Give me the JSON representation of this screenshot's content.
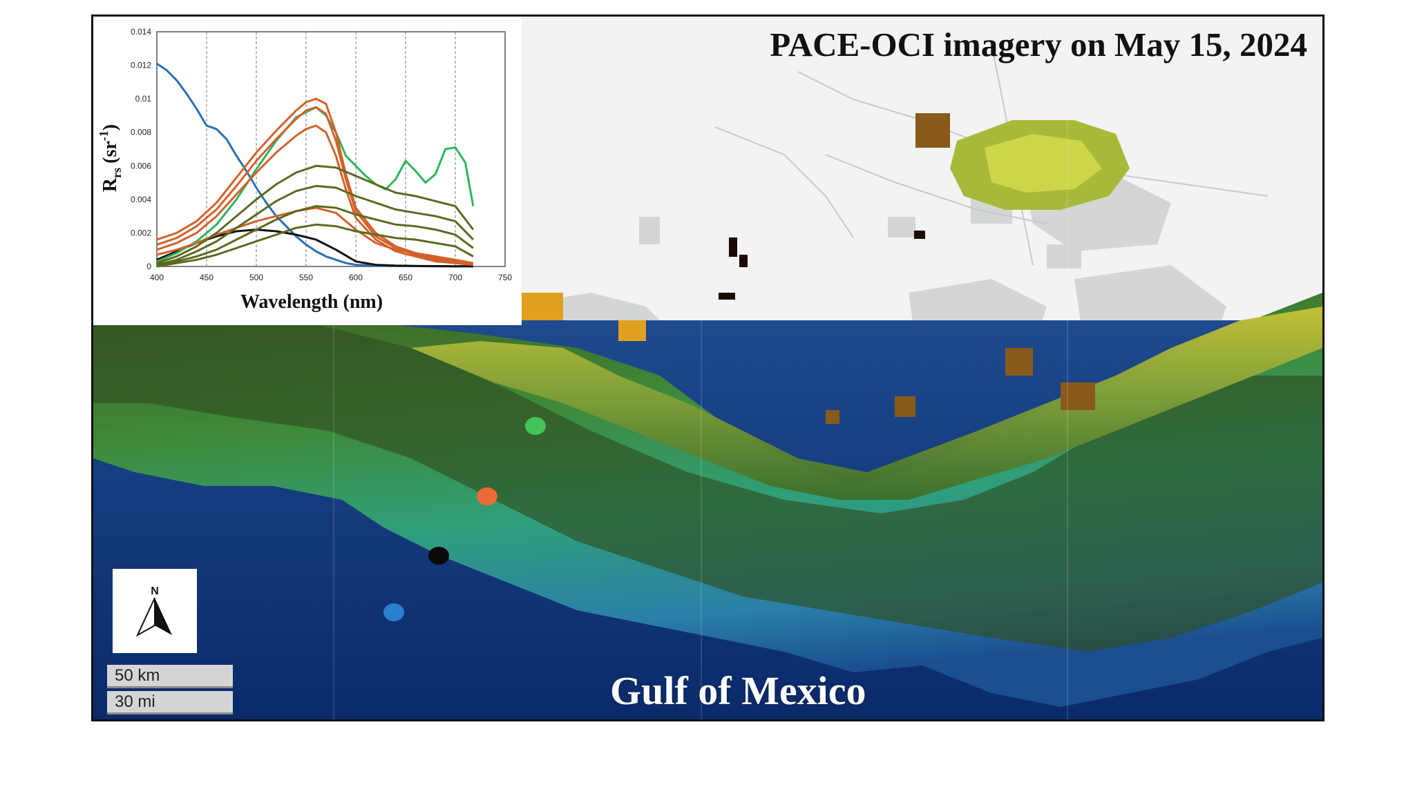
{
  "map": {
    "title": "PACE-OCI imagery on May 15, 2024",
    "water_label": "Gulf of Mexico",
    "north_label": "N",
    "scale_km": "50 km",
    "scale_mi": "30 mi",
    "sample_points": [
      {
        "name": "green",
        "color": "#43c35a"
      },
      {
        "name": "orange",
        "color": "#ec6a35"
      },
      {
        "name": "black",
        "color": "#0a0a0a"
      },
      {
        "name": "blue",
        "color": "#2a7fd1"
      }
    ]
  },
  "chart_data": {
    "type": "line",
    "xlabel": "Wavelength (nm)",
    "ylabel_main": "R",
    "ylabel_sub": "rs",
    "ylabel_unit_open": "(sr",
    "ylabel_unit_exp": "-1",
    "ylabel_unit_close": ")",
    "xlim": [
      400,
      750
    ],
    "ylim": [
      0,
      0.014
    ],
    "xticks": [
      "400",
      "450",
      "500",
      "550",
      "600",
      "650",
      "700",
      "750"
    ],
    "yticks": [
      "0",
      "0.002",
      "0.004",
      "0.006",
      "0.008",
      "0.01",
      "0.012",
      "0.014"
    ],
    "grid": "vertical dashed",
    "series": [
      {
        "color": "#2a6fb5",
        "x": [
          400,
          410,
          420,
          430,
          440,
          450,
          460,
          470,
          480,
          490,
          500,
          510,
          520,
          530,
          540,
          550,
          560,
          570,
          580,
          590,
          600,
          620,
          640,
          660,
          680,
          700,
          718
        ],
        "y": [
          0.0121,
          0.0117,
          0.0111,
          0.0103,
          0.0094,
          0.0084,
          0.0082,
          0.0076,
          0.0066,
          0.0057,
          0.0047,
          0.0038,
          0.003,
          0.0024,
          0.0018,
          0.0013,
          0.0009,
          0.0006,
          0.0004,
          0.0002,
          0.0001,
          5e-05,
          3e-05,
          2e-05,
          1e-05,
          1e-05,
          1e-05
        ]
      },
      {
        "color": "#111111",
        "x": [
          400,
          420,
          440,
          460,
          480,
          500,
          520,
          540,
          560,
          580,
          600,
          620,
          640,
          660,
          680,
          700,
          718
        ],
        "y": [
          0.0004,
          0.0009,
          0.0014,
          0.0018,
          0.0021,
          0.0022,
          0.0021,
          0.0019,
          0.0016,
          0.001,
          0.0003,
          0.0001,
          5e-05,
          3e-05,
          2e-05,
          1e-05,
          1e-05
        ]
      },
      {
        "color": "#2fb45a",
        "x": [
          400,
          420,
          440,
          460,
          480,
          500,
          520,
          540,
          560,
          570,
          580,
          590,
          600,
          610,
          620,
          630,
          640,
          650,
          660,
          670,
          680,
          690,
          700,
          710,
          718
        ],
        "y": [
          0.0003,
          0.0008,
          0.0015,
          0.0025,
          0.004,
          0.0058,
          0.0075,
          0.0089,
          0.0095,
          0.009,
          0.008,
          0.0066,
          0.006,
          0.0054,
          0.0049,
          0.0046,
          0.0052,
          0.0063,
          0.0057,
          0.005,
          0.0055,
          0.007,
          0.0071,
          0.0062,
          0.0036
        ]
      },
      {
        "color": "#d2612a",
        "x": [
          400,
          420,
          440,
          460,
          480,
          500,
          520,
          540,
          550,
          560,
          570,
          580,
          590,
          600,
          620,
          640,
          660,
          680,
          700,
          718
        ],
        "y": [
          0.0016,
          0.002,
          0.0027,
          0.0038,
          0.0053,
          0.0068,
          0.0081,
          0.0093,
          0.0098,
          0.01,
          0.0097,
          0.008,
          0.0055,
          0.0035,
          0.002,
          0.0012,
          0.0008,
          0.0005,
          0.0003,
          0.0001
        ]
      },
      {
        "color": "#d2612a",
        "x": [
          400,
          420,
          440,
          460,
          480,
          500,
          520,
          540,
          550,
          560,
          570,
          580,
          590,
          600,
          620,
          640,
          660,
          680,
          700,
          718
        ],
        "y": [
          0.0013,
          0.0017,
          0.0024,
          0.0034,
          0.0048,
          0.0063,
          0.0076,
          0.0088,
          0.0093,
          0.0095,
          0.0091,
          0.0075,
          0.0052,
          0.0033,
          0.0018,
          0.0011,
          0.0007,
          0.0004,
          0.0002,
          0.0001
        ]
      },
      {
        "color": "#d2612a",
        "x": [
          400,
          420,
          440,
          460,
          480,
          500,
          520,
          540,
          550,
          560,
          570,
          580,
          590,
          600,
          620,
          640,
          660,
          680,
          700,
          718
        ],
        "y": [
          0.001,
          0.0014,
          0.002,
          0.003,
          0.0043,
          0.0056,
          0.0068,
          0.0078,
          0.0082,
          0.0084,
          0.008,
          0.0066,
          0.0046,
          0.0029,
          0.0016,
          0.0009,
          0.0006,
          0.0003,
          0.0002,
          0.0001
        ]
      },
      {
        "color": "#d2612a",
        "x": [
          400,
          420,
          440,
          460,
          480,
          500,
          520,
          540,
          560,
          580,
          600,
          620,
          640,
          660,
          680,
          700,
          718
        ],
        "y": [
          0.0007,
          0.001,
          0.0014,
          0.0019,
          0.0023,
          0.0027,
          0.003,
          0.0033,
          0.0035,
          0.0032,
          0.0022,
          0.0014,
          0.001,
          0.0008,
          0.0006,
          0.0004,
          0.0002
        ]
      },
      {
        "color": "#5b6a1f",
        "x": [
          400,
          420,
          440,
          460,
          480,
          500,
          520,
          540,
          560,
          580,
          600,
          620,
          640,
          660,
          680,
          700,
          718
        ],
        "y": [
          0.0002,
          0.0006,
          0.0012,
          0.002,
          0.003,
          0.004,
          0.0049,
          0.0056,
          0.006,
          0.0059,
          0.0054,
          0.0049,
          0.0044,
          0.0042,
          0.0039,
          0.0036,
          0.0022
        ]
      },
      {
        "color": "#5b6a1f",
        "x": [
          400,
          420,
          440,
          460,
          480,
          500,
          520,
          540,
          560,
          580,
          600,
          620,
          640,
          660,
          680,
          700,
          718
        ],
        "y": [
          0.0001,
          0.0004,
          0.0009,
          0.0015,
          0.0023,
          0.0031,
          0.0039,
          0.0045,
          0.0048,
          0.0047,
          0.0042,
          0.0038,
          0.0034,
          0.0032,
          0.003,
          0.0027,
          0.0016
        ]
      },
      {
        "color": "#5b6a1f",
        "x": [
          400,
          420,
          440,
          460,
          480,
          500,
          520,
          540,
          560,
          580,
          600,
          620,
          640,
          660,
          680,
          700,
          718
        ],
        "y": [
          0.0001,
          0.0003,
          0.0006,
          0.001,
          0.0016,
          0.0022,
          0.0028,
          0.0033,
          0.0036,
          0.0035,
          0.0031,
          0.0028,
          0.0025,
          0.0024,
          0.0022,
          0.0019,
          0.0011
        ]
      },
      {
        "color": "#5b6a1f",
        "x": [
          400,
          420,
          440,
          460,
          480,
          500,
          520,
          540,
          560,
          580,
          600,
          620,
          640,
          660,
          680,
          700,
          718
        ],
        "y": [
          0.0,
          0.0002,
          0.0004,
          0.0007,
          0.0011,
          0.0015,
          0.0019,
          0.0023,
          0.0025,
          0.0024,
          0.0021,
          0.0019,
          0.0017,
          0.0016,
          0.0014,
          0.0012,
          0.0006
        ]
      }
    ]
  }
}
